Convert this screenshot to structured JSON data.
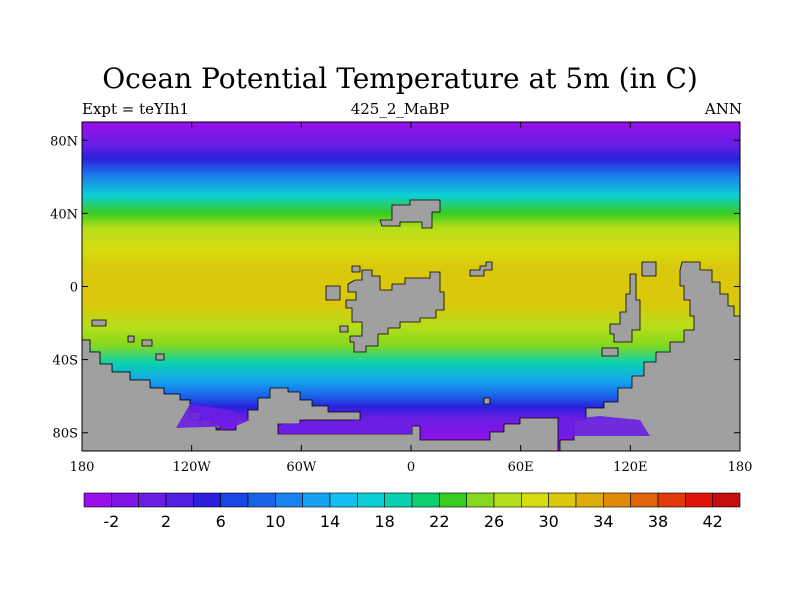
{
  "chart_data": {
    "type": "heatmap",
    "title": "Ocean Potential Temperature at 5m (in C)",
    "left_subtitle": "Expt = teYIh1",
    "center_subtitle": "425_2_MaBP",
    "right_subtitle": "ANN",
    "x_ticks": [
      {
        "value": -180,
        "label": "180"
      },
      {
        "value": -120,
        "label": "120W"
      },
      {
        "value": -60,
        "label": "60W"
      },
      {
        "value": 0,
        "label": "0"
      },
      {
        "value": 60,
        "label": "60E"
      },
      {
        "value": 120,
        "label": "120E"
      },
      {
        "value": 180,
        "label": "180"
      }
    ],
    "y_ticks": [
      {
        "value": 80,
        "label": "80N"
      },
      {
        "value": 40,
        "label": "40N"
      },
      {
        "value": 0,
        "label": "0"
      },
      {
        "value": -40,
        "label": "40S"
      },
      {
        "value": -80,
        "label": "80S"
      }
    ],
    "xlim": [
      -180,
      180
    ],
    "ylim": [
      -90,
      90
    ],
    "grid": false,
    "colorbar": {
      "levels": [
        -4,
        -2,
        0,
        2,
        4,
        6,
        8,
        10,
        12,
        14,
        16,
        18,
        20,
        22,
        24,
        26,
        28,
        30,
        32,
        34,
        36,
        38,
        40,
        42,
        44
      ],
      "labels": [
        "-2",
        "2",
        "6",
        "10",
        "14",
        "18",
        "22",
        "26",
        "30",
        "34",
        "38",
        "42"
      ],
      "label_values": [
        -2,
        2,
        6,
        10,
        14,
        18,
        22,
        26,
        30,
        34,
        38,
        42
      ],
      "colors": [
        "#9a10e8",
        "#8016e6",
        "#6a1ee3",
        "#5320e0",
        "#2a20dc",
        "#1846e2",
        "#1a62e8",
        "#1a82ec",
        "#16a2ef",
        "#12bff0",
        "#0ccfd6",
        "#0ad1b0",
        "#0ccf70",
        "#38cc22",
        "#86d81e",
        "#b6de1a",
        "#d6dc10",
        "#d9c80c",
        "#dcac0a",
        "#df8a0a",
        "#e0640a",
        "#e03a0a",
        "#e0140a",
        "#c60e0e"
      ]
    },
    "latitude_profile": [
      {
        "lat": 90,
        "temp": -2.5
      },
      {
        "lat": 84,
        "temp": -1.5
      },
      {
        "lat": 78,
        "temp": 1
      },
      {
        "lat": 70,
        "temp": 5
      },
      {
        "lat": 60,
        "temp": 10
      },
      {
        "lat": 50,
        "temp": 16
      },
      {
        "lat": 40,
        "temp": 22
      },
      {
        "lat": 32,
        "temp": 26
      },
      {
        "lat": 20,
        "temp": 29
      },
      {
        "lat": 10,
        "temp": 31
      },
      {
        "lat": 0,
        "temp": 31.5
      },
      {
        "lat": -10,
        "temp": 30
      },
      {
        "lat": -22,
        "temp": 27
      },
      {
        "lat": -32,
        "temp": 24
      },
      {
        "lat": -42,
        "temp": 18
      },
      {
        "lat": -52,
        "temp": 12
      },
      {
        "lat": -60,
        "temp": 8
      },
      {
        "lat": -66,
        "temp": 4
      },
      {
        "lat": -72,
        "temp": 0
      },
      {
        "lat": -80,
        "temp": -2
      },
      {
        "lat": -90,
        "temp": -2.5
      }
    ],
    "land_color": "#a0a0a0"
  }
}
